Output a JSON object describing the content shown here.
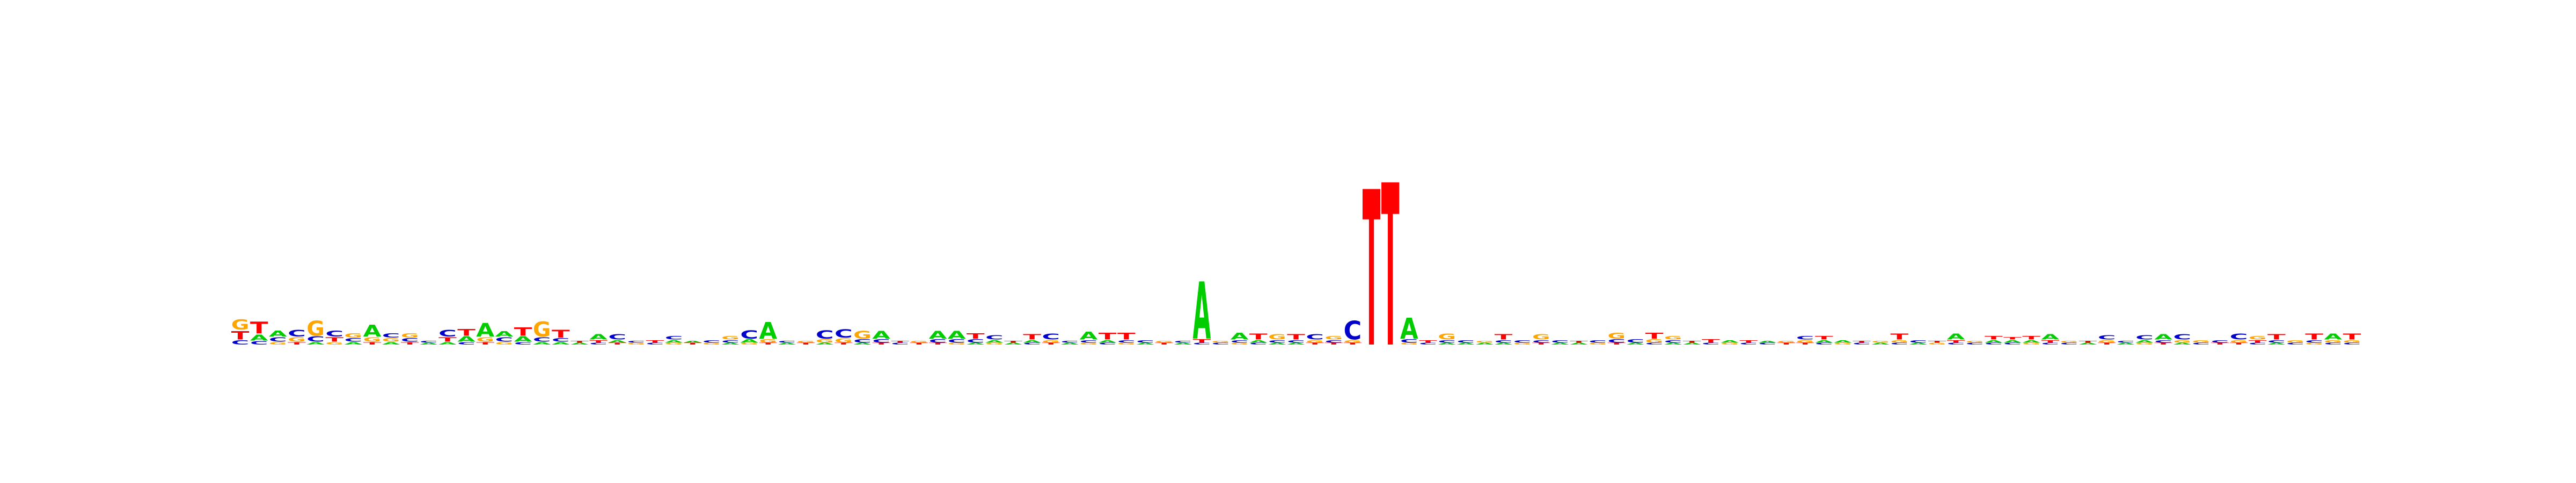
{
  "chart_data": {
    "type": "sequence-logo",
    "title": "",
    "xlabel": "",
    "ylabel": "",
    "axes_visible": false,
    "grid": false,
    "legend": "none",
    "colors": {
      "A": "#00cc00",
      "C": "#0000cc",
      "G": "#ffa500",
      "T": "#ff0000"
    },
    "max_bits": 2.0,
    "positions": [
      {
        "GT": 1
      },
      [
        [
          "G",
          0.12
        ],
        [
          "T",
          0.1
        ],
        [
          "C",
          0.05
        ]
      ],
      [
        [
          "T",
          0.14
        ],
        [
          "A",
          0.07
        ],
        [
          "C",
          0.04
        ]
      ],
      [
        [
          "A",
          0.07
        ],
        [
          "C",
          0.05
        ],
        [
          "G",
          0.03
        ]
      ],
      [
        [
          "C",
          0.08
        ],
        [
          "G",
          0.05
        ],
        [
          "T",
          0.03
        ]
      ],
      [
        [
          "G",
          0.18
        ],
        [
          "C",
          0.06
        ],
        [
          "A",
          0.03
        ]
      ],
      [
        [
          "C",
          0.07
        ],
        [
          "T",
          0.05
        ],
        [
          "G",
          0.03
        ]
      ],
      [
        [
          "G",
          0.05
        ],
        [
          "C",
          0.04
        ],
        [
          "A",
          0.03
        ]
      ],
      [
        [
          "A",
          0.14
        ],
        [
          "G",
          0.05
        ],
        [
          "T",
          0.03
        ]
      ],
      [
        [
          "C",
          0.05
        ],
        [
          "G",
          0.04
        ],
        [
          "A",
          0.03
        ]
      ],
      [
        [
          "G",
          0.05
        ],
        [
          "C",
          0.04
        ],
        [
          "T",
          0.03
        ]
      ],
      [
        [
          "A",
          0.02
        ],
        [
          "C",
          0.02
        ]
      ],
      [
        [
          "C",
          0.08
        ],
        [
          "T",
          0.05
        ],
        [
          "A",
          0.03
        ]
      ],
      [
        [
          "T",
          0.08
        ],
        [
          "A",
          0.06
        ],
        [
          "C",
          0.03
        ]
      ],
      [
        [
          "A",
          0.16
        ],
        [
          "G",
          0.05
        ],
        [
          "T",
          0.03
        ]
      ],
      [
        [
          "A",
          0.06
        ],
        [
          "C",
          0.05
        ],
        [
          "G",
          0.03
        ]
      ],
      [
        [
          "T",
          0.1
        ],
        [
          "A",
          0.06
        ],
        [
          "C",
          0.03
        ]
      ],
      [
        [
          "G",
          0.18
        ],
        [
          "C",
          0.05
        ],
        [
          "A",
          0.03
        ]
      ],
      [
        [
          "T",
          0.09
        ],
        [
          "C",
          0.04
        ],
        [
          "A",
          0.03
        ]
      ],
      [
        [
          "A",
          0.02
        ],
        [
          "T",
          0.02
        ]
      ],
      [
        [
          "A",
          0.06
        ],
        [
          "T",
          0.03
        ],
        [
          "C",
          0.02
        ]
      ],
      [
        [
          "C",
          0.06
        ],
        [
          "A",
          0.03
        ],
        [
          "T",
          0.02
        ]
      ],
      [
        [
          "G",
          0.02
        ],
        [
          "C",
          0.02
        ]
      ],
      [
        [
          "T",
          0.03
        ],
        [
          "C",
          0.02
        ]
      ],
      [
        [
          "C",
          0.04
        ],
        [
          "A",
          0.03
        ],
        [
          "G",
          0.02
        ]
      ],
      [
        [
          "T",
          0.02
        ],
        [
          "A",
          0.02
        ]
      ],
      [
        [
          "C",
          0.03
        ],
        [
          "G",
          0.02
        ]
      ],
      [
        [
          "G",
          0.04
        ],
        [
          "C",
          0.03
        ],
        [
          "A",
          0.02
        ]
      ],
      [
        [
          "C",
          0.1
        ],
        [
          "A",
          0.04
        ],
        [
          "G",
          0.02
        ]
      ],
      [
        [
          "A",
          0.2
        ],
        [
          "G",
          0.04
        ],
        [
          "T",
          0.02
        ]
      ],
      [
        [
          "A",
          0.02
        ],
        [
          "C",
          0.02
        ]
      ],
      [
        [
          "T",
          0.02
        ],
        [
          "G",
          0.02
        ]
      ],
      [
        [
          "C",
          0.1
        ],
        [
          "G",
          0.04
        ],
        [
          "A",
          0.02
        ]
      ],
      [
        [
          "C",
          0.1
        ],
        [
          "G",
          0.05
        ],
        [
          "T",
          0.02
        ]
      ],
      [
        [
          "G",
          0.09
        ],
        [
          "C",
          0.04
        ],
        [
          "A",
          0.02
        ]
      ],
      [
        [
          "A",
          0.09
        ],
        [
          "C",
          0.04
        ],
        [
          "T",
          0.02
        ]
      ],
      [
        [
          "C",
          0.02
        ],
        [
          "T",
          0.02
        ]
      ],
      [
        [
          "T",
          0.02
        ],
        [
          "G",
          0.02
        ]
      ],
      [
        [
          "A",
          0.09
        ],
        [
          "C",
          0.04
        ],
        [
          "T",
          0.02
        ]
      ],
      [
        [
          "A",
          0.09
        ],
        [
          "C",
          0.04
        ],
        [
          "G",
          0.02
        ]
      ],
      [
        [
          "T",
          0.06
        ],
        [
          "C",
          0.04
        ],
        [
          "A",
          0.02
        ]
      ],
      [
        [
          "C",
          0.05
        ],
        [
          "A",
          0.03
        ],
        [
          "G",
          0.02
        ]
      ],
      [
        [
          "A",
          0.02
        ],
        [
          "T",
          0.02
        ]
      ],
      [
        [
          "T",
          0.06
        ],
        [
          "A",
          0.03
        ],
        [
          "C",
          0.02
        ]
      ],
      [
        [
          "C",
          0.07
        ],
        [
          "G",
          0.03
        ],
        [
          "T",
          0.02
        ]
      ],
      [
        [
          "A",
          0.02
        ],
        [
          "C",
          0.02
        ]
      ],
      [
        [
          "A",
          0.09
        ],
        [
          "C",
          0.03
        ],
        [
          "G",
          0.02
        ]
      ],
      [
        [
          "T",
          0.08
        ],
        [
          "A",
          0.03
        ],
        [
          "C",
          0.02
        ]
      ],
      [
        [
          "T",
          0.08
        ],
        [
          "C",
          0.03
        ],
        [
          "G",
          0.02
        ]
      ],
      [
        [
          "C",
          0.03
        ],
        [
          "A",
          0.02
        ]
      ],
      [
        [
          "T",
          0.02
        ],
        [
          "G",
          0.02
        ]
      ],
      [
        [
          "A",
          0.02
        ],
        [
          "C",
          0.02
        ]
      ],
      [
        [
          "A",
          0.68
        ],
        [
          "T",
          0.04
        ],
        [
          "C",
          0.02
        ]
      ],
      [
        [
          "C",
          0.02
        ],
        [
          "G",
          0.02
        ]
      ],
      [
        [
          "A",
          0.08
        ],
        [
          "C",
          0.03
        ],
        [
          "G",
          0.02
        ]
      ],
      [
        [
          "T",
          0.07
        ],
        [
          "A",
          0.03
        ],
        [
          "C",
          0.02
        ]
      ],
      [
        [
          "G",
          0.06
        ],
        [
          "C",
          0.03
        ],
        [
          "A",
          0.02
        ]
      ],
      [
        [
          "T",
          0.06
        ],
        [
          "C",
          0.03
        ],
        [
          "A",
          0.02
        ]
      ],
      [
        [
          "C",
          0.06
        ],
        [
          "G",
          0.03
        ],
        [
          "T",
          0.02
        ]
      ],
      [
        [
          "G",
          0.04
        ],
        [
          "C",
          0.03
        ],
        [
          "T",
          0.02
        ]
      ],
      [
        [
          "C",
          0.22
        ],
        [
          "G",
          0.03
        ],
        [
          "T",
          0.02
        ]
      ],
      [
        [
          "T",
          1.85
        ]
      ],
      [
        [
          "T",
          1.93
        ]
      ],
      [
        [
          "A",
          0.25
        ],
        [
          "C",
          0.04
        ],
        [
          "G",
          0.02
        ]
      ],
      [
        [
          "T",
          0.03
        ],
        [
          "C",
          0.02
        ]
      ],
      [
        [
          "G",
          0.07
        ],
        [
          "C",
          0.03
        ],
        [
          "A",
          0.02
        ]
      ],
      [
        [
          "C",
          0.03
        ],
        [
          "A",
          0.02
        ]
      ],
      [
        [
          "A",
          0.02
        ],
        [
          "G",
          0.02
        ]
      ],
      [
        [
          "T",
          0.06
        ],
        [
          "C",
          0.03
        ],
        [
          "A",
          0.02
        ]
      ],
      [
        [
          "C",
          0.03
        ],
        [
          "G",
          0.02
        ]
      ],
      [
        [
          "G",
          0.06
        ],
        [
          "C",
          0.03
        ],
        [
          "T",
          0.02
        ]
      ],
      [
        [
          "C",
          0.03
        ],
        [
          "A",
          0.02
        ]
      ],
      [
        [
          "A",
          0.02
        ],
        [
          "T",
          0.02
        ]
      ],
      [
        [
          "C",
          0.03
        ],
        [
          "G",
          0.02
        ]
      ],
      [
        [
          "G",
          0.07
        ],
        [
          "C",
          0.04
        ],
        [
          "T",
          0.02
        ]
      ],
      [
        [
          "C",
          0.04
        ],
        [
          "A",
          0.02
        ]
      ],
      [
        [
          "T",
          0.07
        ],
        [
          "G",
          0.04
        ],
        [
          "C",
          0.02
        ]
      ],
      [
        [
          "G",
          0.04
        ],
        [
          "C",
          0.03
        ],
        [
          "A",
          0.02
        ]
      ],
      [
        [
          "A",
          0.02
        ],
        [
          "T",
          0.02
        ]
      ],
      [
        [
          "T",
          0.04
        ],
        [
          "C",
          0.02
        ]
      ],
      [
        [
          "A",
          0.03
        ],
        [
          "G",
          0.02
        ]
      ],
      [
        [
          "T",
          0.03
        ],
        [
          "C",
          0.02
        ]
      ],
      [
        [
          "C",
          0.02
        ],
        [
          "A",
          0.02
        ]
      ],
      [
        [
          "T",
          0.02
        ],
        [
          "G",
          0.02
        ]
      ],
      [
        [
          "C",
          0.04
        ],
        [
          "G",
          0.03
        ],
        [
          "T",
          0.02
        ]
      ],
      [
        [
          "T",
          0.04
        ],
        [
          "A",
          0.03
        ],
        [
          "C",
          0.02
        ]
      ],
      [
        [
          "A",
          0.03
        ],
        [
          "G",
          0.02
        ]
      ],
      [
        [
          "C",
          0.02
        ],
        [
          "T",
          0.02
        ]
      ],
      [
        [
          "A",
          0.02
        ],
        [
          "G",
          0.02
        ]
      ],
      [
        [
          "T",
          0.07
        ],
        [
          "G",
          0.03
        ],
        [
          "C",
          0.02
        ]
      ],
      [
        [
          "C",
          0.03
        ],
        [
          "A",
          0.02
        ]
      ],
      [
        [
          "G",
          0.02
        ],
        [
          "T",
          0.02
        ]
      ],
      [
        [
          "A",
          0.07
        ],
        [
          "T",
          0.03
        ],
        [
          "C",
          0.02
        ]
      ],
      [
        [
          "C",
          0.02
        ],
        [
          "G",
          0.02
        ]
      ],
      [
        [
          "T",
          0.04
        ],
        [
          "A",
          0.03
        ],
        [
          "C",
          0.02
        ]
      ],
      [
        [
          "A",
          0.03
        ],
        [
          "T",
          0.03
        ],
        [
          "C",
          0.02
        ]
      ],
      [
        [
          "T",
          0.04
        ],
        [
          "A",
          0.03
        ],
        [
          "G",
          0.02
        ]
      ],
      [
        [
          "A",
          0.06
        ],
        [
          "T",
          0.03
        ],
        [
          "C",
          0.02
        ]
      ],
      [
        [
          "C",
          0.02
        ],
        [
          "G",
          0.02
        ]
      ],
      [
        [
          "A",
          0.02
        ],
        [
          "T",
          0.02
        ]
      ],
      [
        [
          "C",
          0.05
        ],
        [
          "G",
          0.03
        ],
        [
          "T",
          0.02
        ]
      ],
      [
        [
          "A",
          0.02
        ],
        [
          "C",
          0.02
        ]
      ],
      [
        [
          "C",
          0.05
        ],
        [
          "A",
          0.03
        ],
        [
          "G",
          0.02
        ]
      ],
      [
        [
          "A",
          0.06
        ],
        [
          "C",
          0.03
        ],
        [
          "T",
          0.02
        ]
      ],
      [
        [
          "C",
          0.06
        ],
        [
          "G",
          0.03
        ],
        [
          "A",
          0.02
        ]
      ],
      [
        [
          "G",
          0.03
        ],
        [
          "C",
          0.02
        ]
      ],
      [
        [
          "C",
          0.03
        ],
        [
          "T",
          0.02
        ]
      ],
      [
        [
          "C",
          0.07
        ],
        [
          "G",
          0.03
        ],
        [
          "T",
          0.02
        ]
      ],
      [
        [
          "G",
          0.04
        ],
        [
          "T",
          0.03
        ],
        [
          "C",
          0.02
        ]
      ],
      [
        [
          "T",
          0.06
        ],
        [
          "C",
          0.03
        ],
        [
          "A",
          0.02
        ]
      ],
      [
        [
          "G",
          0.03
        ],
        [
          "C",
          0.02
        ]
      ],
      [
        [
          "T",
          0.07
        ],
        [
          "C",
          0.03
        ],
        [
          "G",
          0.02
        ]
      ],
      [
        [
          "A",
          0.07
        ],
        [
          "G",
          0.03
        ],
        [
          "C",
          0.02
        ]
      ],
      [
        [
          "T",
          0.07
        ],
        [
          "G",
          0.03
        ],
        [
          "C",
          0.02
        ]
      ]
    ]
  }
}
